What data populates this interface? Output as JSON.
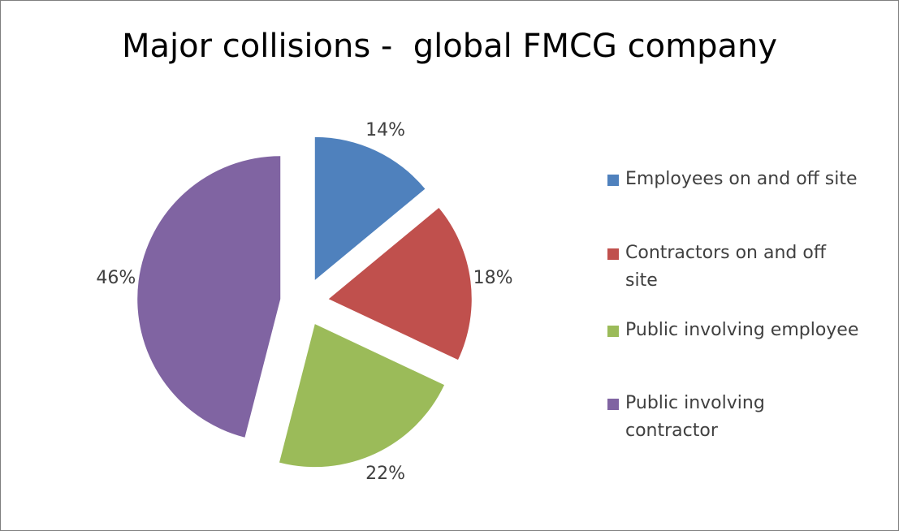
{
  "chart_data": {
    "type": "pie",
    "title": "Major collisions -  global FMCG company",
    "categories": [
      "Employees on and off site",
      "Contractors on and off site",
      "Public involving employee",
      "Public involving contractor"
    ],
    "values": [
      14,
      18,
      22,
      46
    ],
    "data_labels": [
      "14%",
      "18%",
      "22%",
      "46%"
    ],
    "colors": [
      "#4f81bd",
      "#c0504d",
      "#9bbb59",
      "#8064a2"
    ],
    "exploded": true,
    "legend_position": "right"
  },
  "legend": {
    "items": [
      {
        "lines": [
          "Employees on and off site"
        ]
      },
      {
        "lines": [
          "Contractors on and off",
          "site"
        ]
      },
      {
        "lines": [
          "Public involving employee"
        ]
      },
      {
        "lines": [
          "Public involving",
          "contractor"
        ]
      }
    ]
  }
}
